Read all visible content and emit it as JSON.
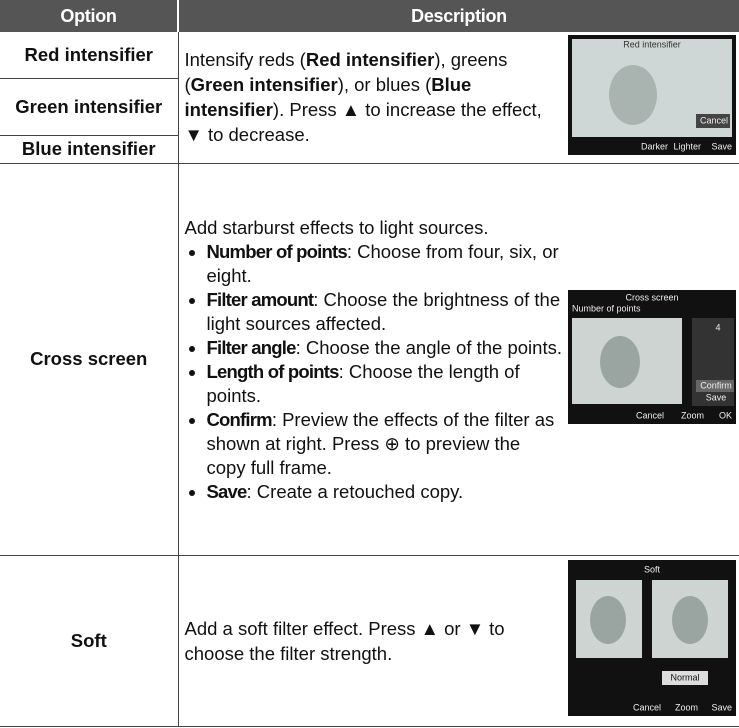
{
  "header": {
    "option": "Option",
    "description": "Description"
  },
  "rows": [
    {
      "options": [
        "Red intensifier",
        "Green intensifier",
        "Blue intensifier"
      ],
      "description": [
        {
          "text": "Intensify reds (",
          "bold": false
        },
        {
          "text": "Red intensifier",
          "bold": true
        },
        {
          "text": "), greens (",
          "bold": false
        },
        {
          "text": "Green intensifier",
          "bold": true
        },
        {
          "text": "), or blues (",
          "bold": false
        },
        {
          "text": "Blue intensifier",
          "bold": true
        },
        {
          "text": ").  Press ▲ to increase the effect, ▼ to decrease.",
          "bold": false
        }
      ],
      "screen": {
        "title": "Red intensifier",
        "labels": [
          "Cancel",
          "Darker",
          "Lighter",
          "Save"
        ]
      }
    },
    {
      "options": [
        "Cross screen"
      ],
      "description": [
        {
          "text": "Add starburst effects to light sources.",
          "bold": false
        }
      ],
      "bullets": [
        {
          "name": "Number of points",
          "text": ": Choose from four, six, or eight."
        },
        {
          "name": "Filter amount",
          "text": ": Choose the brightness of the light sources affected."
        },
        {
          "name": "Filter angle",
          "text": ": Choose the angle of the points."
        },
        {
          "name": "Length of points",
          "text": ": Choose the length of points."
        },
        {
          "name": "Confirm",
          "text": ": Preview the effects of the filter as shown at right.  Press ⊕ to preview the copy full frame."
        },
        {
          "name": "Save",
          "text": ": Create a retouched copy."
        }
      ],
      "screen": {
        "title": "Cross screen",
        "labels": [
          "Number of points",
          "4",
          "Confirm",
          "Save",
          "Cancel",
          "Zoom",
          "OK"
        ]
      }
    },
    {
      "options": [
        "Soft"
      ],
      "description": [
        {
          "text": "Add a soft filter effect.  Press ▲ or ▼ to choose the filter strength.",
          "bold": false
        }
      ],
      "screen": {
        "title": "Soft",
        "labels": [
          "Normal",
          "Cancel",
          "Zoom",
          "Save"
        ]
      }
    }
  ]
}
